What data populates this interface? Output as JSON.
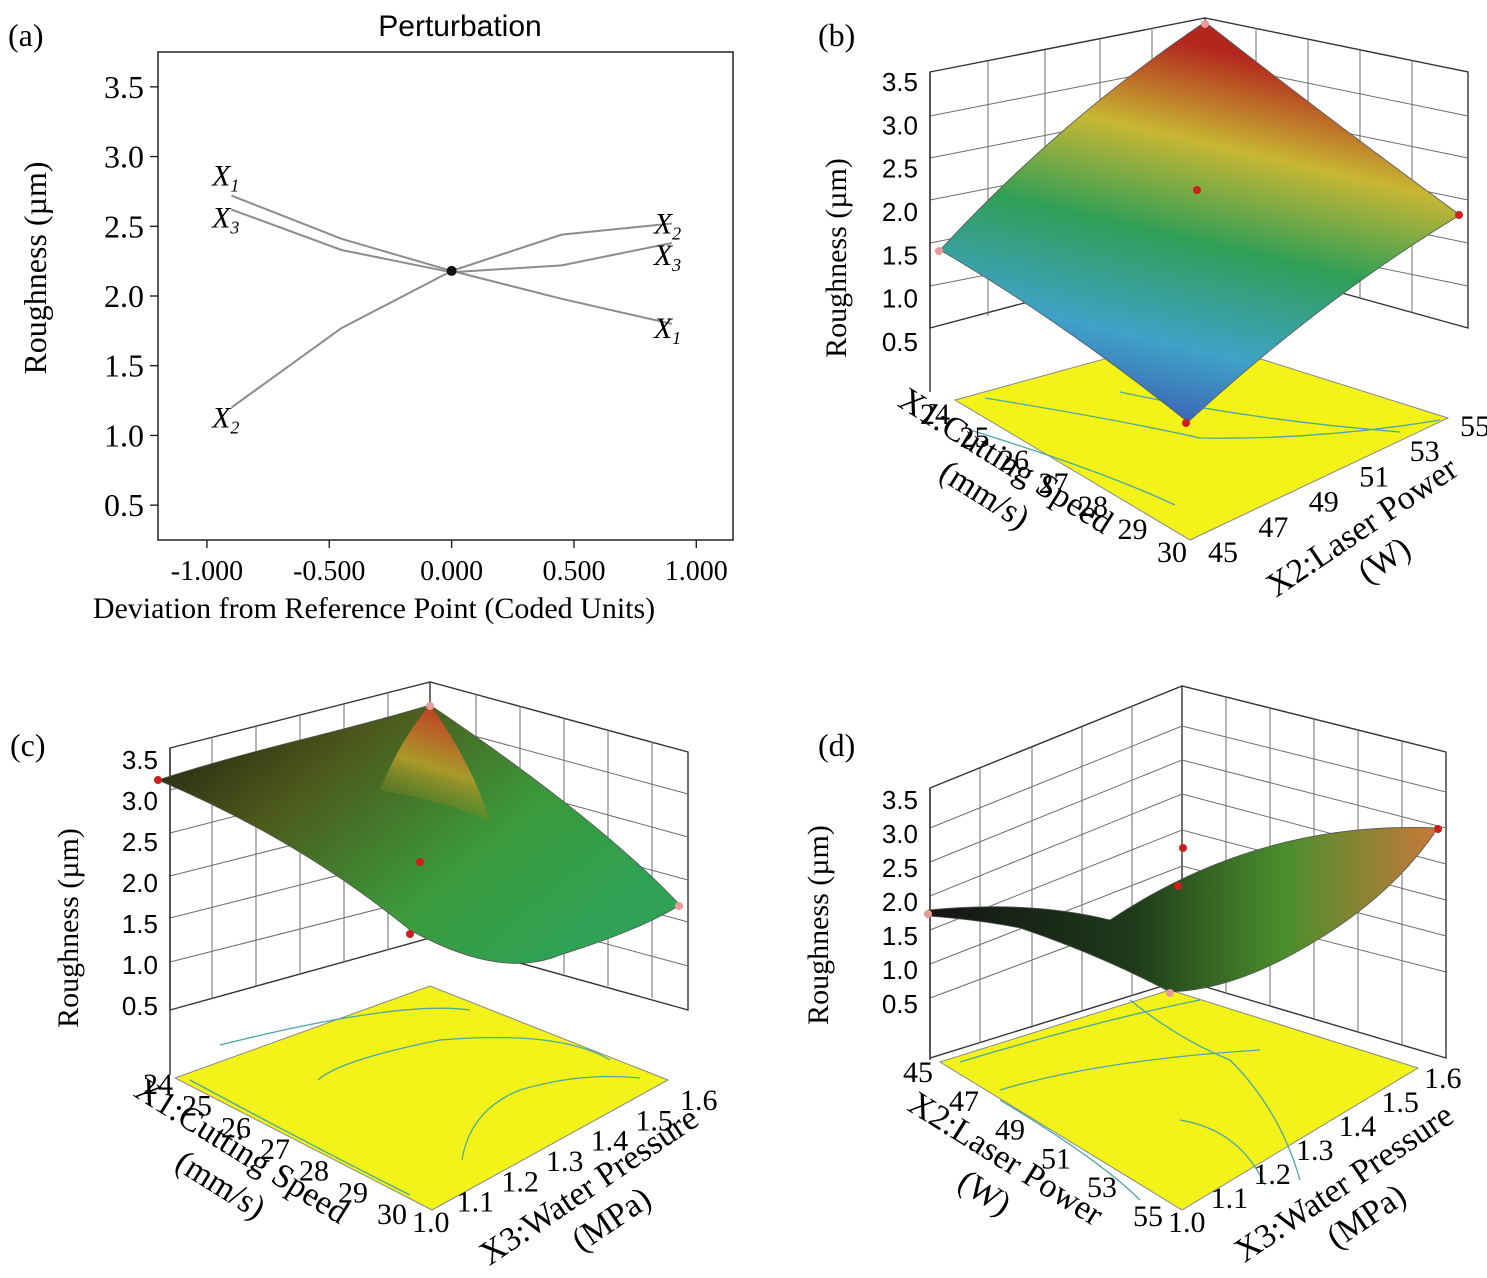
{
  "panel_labels": {
    "a": "(a)",
    "b": "(b)",
    "c": "(c)",
    "d": "(d)"
  },
  "colors": {
    "floor": "#f3f31a",
    "line": "#8c8c8c",
    "design_point": "#cc1f1f",
    "contour": "#4aa9a0"
  },
  "chart_data": [
    {
      "panel": "a",
      "type": "line",
      "title": "Perturbation",
      "xlabel": "Deviation from Reference Point (Coded Units)",
      "ylabel": "Roughness (µm)",
      "xlim": [
        -1.2,
        1.15
      ],
      "ylim": [
        0.25,
        3.75
      ],
      "xticks": [
        "-1.000",
        "-0.500",
        "0.000",
        "0.500",
        "1.000"
      ],
      "yticks": [
        "0.5",
        "1.0",
        "1.5",
        "2.0",
        "2.5",
        "3.0",
        "3.5"
      ],
      "reference_point": {
        "x": 0.0,
        "y": 2.18
      },
      "series": [
        {
          "name": "X1",
          "x": [
            -0.9,
            -0.45,
            0.0,
            0.45,
            0.9
          ],
          "y": [
            2.72,
            2.41,
            2.18,
            1.98,
            1.8
          ]
        },
        {
          "name": "X2",
          "x": [
            -0.9,
            -0.45,
            0.0,
            0.45,
            0.9
          ],
          "y": [
            1.2,
            1.77,
            2.18,
            2.44,
            2.52
          ]
        },
        {
          "name": "X3",
          "x": [
            -0.9,
            -0.45,
            0.0,
            0.45,
            0.9
          ],
          "y": [
            2.62,
            2.33,
            2.17,
            2.22,
            2.38
          ]
        }
      ]
    },
    {
      "panel": "b",
      "type": "surface",
      "zlabel": "Roughness (µm)",
      "zticks": [
        "0.5",
        "1.0",
        "1.5",
        "2.0",
        "2.5",
        "3.0",
        "3.5"
      ],
      "xaxis_label": [
        "X1:Cutting Speed",
        "(mm/s)"
      ],
      "xticks": [
        "24",
        "25",
        "26",
        "27",
        "28",
        "29",
        "30"
      ],
      "yaxis_label": [
        "X2:Laser Power",
        "(W)"
      ],
      "yticks": [
        "45",
        "47",
        "49",
        "51",
        "53",
        "55"
      ]
    },
    {
      "panel": "c",
      "type": "surface",
      "zlabel": "Roughness (µm)",
      "zticks": [
        "0.5",
        "1.0",
        "1.5",
        "2.0",
        "2.5",
        "3.0",
        "3.5"
      ],
      "xaxis_label": [
        "X1:Cutting Speed",
        "(mm/s)"
      ],
      "xticks": [
        "24",
        "25",
        "26",
        "27",
        "28",
        "29",
        "30"
      ],
      "yaxis_label": [
        "X3:Water Pressure",
        "(MPa)"
      ],
      "yticks": [
        "1.0",
        "1.1",
        "1.2",
        "1.3",
        "1.4",
        "1.5",
        "1.6"
      ]
    },
    {
      "panel": "d",
      "type": "surface",
      "zlabel": "Roughness (µm)",
      "zticks": [
        "0.5",
        "1.0",
        "1.5",
        "2.0",
        "2.5",
        "3.0",
        "3.5"
      ],
      "xaxis_label": [
        "X2:Laser Power",
        "(W)"
      ],
      "xticks": [
        "45",
        "47",
        "49",
        "51",
        "53",
        "55"
      ],
      "yaxis_label": [
        "X3:Water Pressure",
        "(MPa)"
      ],
      "yticks": [
        "1.0",
        "1.1",
        "1.2",
        "1.3",
        "1.4",
        "1.5",
        "1.6"
      ]
    }
  ]
}
